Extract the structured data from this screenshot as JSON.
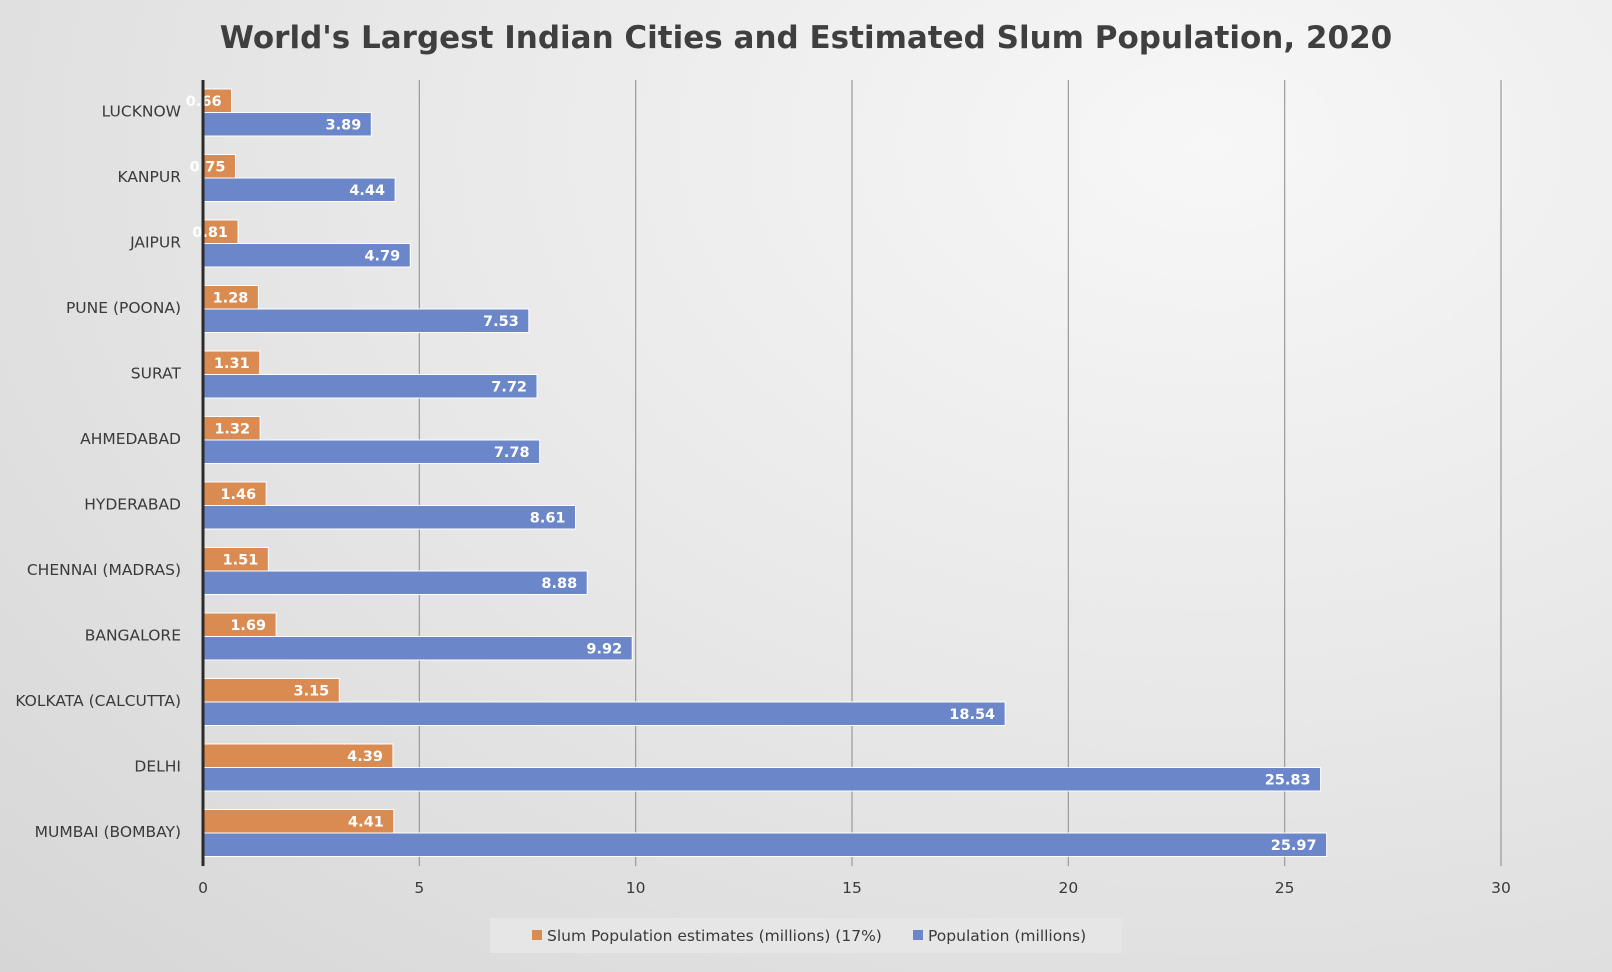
{
  "chart_data": {
    "type": "bar",
    "orientation": "horizontal",
    "title": "World's Largest Indian Cities and Estimated Slum Population, 2020",
    "categories": [
      "LUCKNOW",
      "KANPUR",
      "JAIPUR",
      "PUNE (POONA)",
      "SURAT",
      "AHMEDABAD",
      "HYDERABAD",
      "CHENNAI (MADRAS)",
      "BANGALORE",
      "KOLKATA (CALCUTTA)",
      "DELHI",
      "MUMBAI (BOMBAY)"
    ],
    "series": [
      {
        "name": "Slum Population estimates (millions) (17%)",
        "color": "#d98b52",
        "values": [
          0.66,
          0.75,
          0.81,
          1.28,
          1.31,
          1.32,
          1.46,
          1.51,
          1.69,
          3.15,
          4.39,
          4.41
        ]
      },
      {
        "name": "Population (millions)",
        "color": "#6b86c9",
        "values": [
          3.89,
          4.44,
          4.79,
          7.53,
          7.72,
          7.78,
          8.61,
          8.88,
          9.92,
          18.54,
          25.83,
          25.97
        ]
      }
    ],
    "xlim": [
      0,
      30
    ],
    "xticks": [
      0,
      5,
      10,
      15,
      20,
      25,
      30
    ],
    "grid": "vertical",
    "legend": "bottom",
    "xlabel": "",
    "ylabel": ""
  }
}
